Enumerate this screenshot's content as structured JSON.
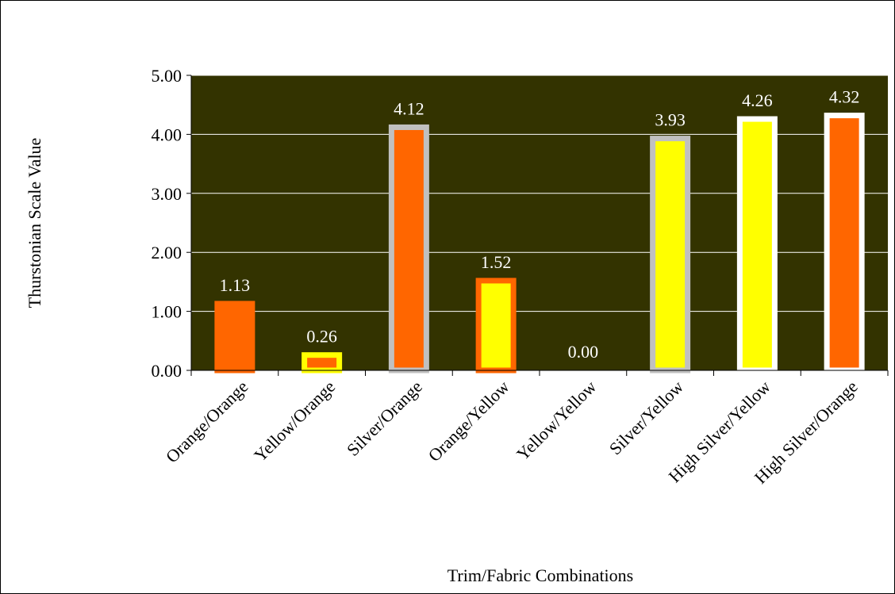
{
  "chart_data": {
    "type": "bar",
    "title": "",
    "xlabel": "Trim/Fabric Combinations",
    "ylabel": "Thurstonian Scale Value",
    "ylim": [
      0,
      5
    ],
    "yticks": [
      0,
      1,
      2,
      3,
      4,
      5
    ],
    "ytick_labels": [
      "0.00",
      "1.00",
      "2.00",
      "3.00",
      "4.00",
      "5.00"
    ],
    "grid": true,
    "plot_background": "#333300",
    "gridline_color": "#ffffff",
    "categories": [
      "Orange/Orange",
      "Yellow/Orange",
      "Silver/Orange",
      "Orange/Yellow",
      "Yellow/Yellow",
      "Silver/Yellow",
      "High Silver/Yellow",
      "High Silver/Orange"
    ],
    "values": [
      1.13,
      0.26,
      4.12,
      1.52,
      0.0,
      3.93,
      4.26,
      4.32
    ],
    "data_labels": [
      "1.13",
      "0.26",
      "4.12",
      "1.52",
      "0.00",
      "3.93",
      "4.26",
      "4.32"
    ],
    "bar_fill": [
      "#ff6600",
      "#ff6600",
      "#ff6600",
      "#ffff00",
      "#ffff00",
      "#ffff00",
      "#ffff00",
      "#ff6600"
    ],
    "bar_border": [
      "#ff6600",
      "#ffff00",
      "#c0c0c0",
      "#ff6600",
      "#ffff00",
      "#c0c0c0",
      "#ffffff",
      "#ffffff"
    ]
  }
}
